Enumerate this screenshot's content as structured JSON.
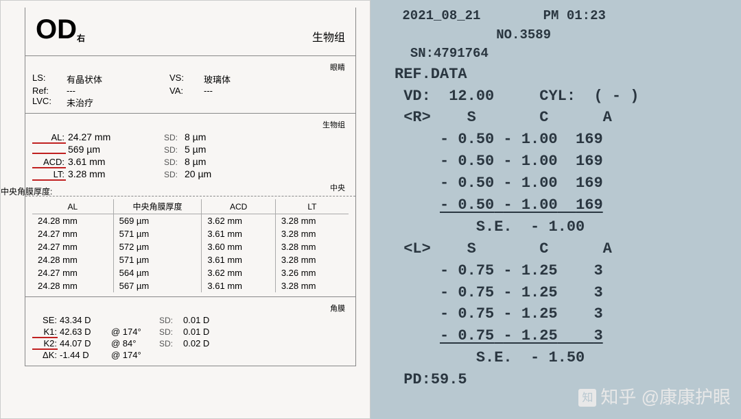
{
  "left": {
    "eye": "OD",
    "eye_sub": "右",
    "hdr_right": "生物组",
    "sub1": "眼睛",
    "status": {
      "ls_label": "LS:",
      "ls_val": "有晶状体",
      "vs_label": "VS:",
      "vs_val": "玻璃体",
      "ref_label": "Ref:",
      "ref_val": "---",
      "va_label": "VA:",
      "va_val": "---",
      "lvc_label": "LVC:",
      "lvc_val": "未治疗"
    },
    "sub2": "生物组",
    "side_note": "中央角膜厚度:",
    "biometry": [
      {
        "k": "AL:",
        "v": "24.27 mm",
        "sd_k": "SD:",
        "sd_v": "8 µm",
        "red": true
      },
      {
        "k": "",
        "v": "569 µm",
        "sd_k": "SD:",
        "sd_v": "5 µm",
        "red": true
      },
      {
        "k": "ACD:",
        "v": "3.61 mm",
        "sd_k": "SD:",
        "sd_v": "8 µm",
        "red": true
      },
      {
        "k": "LT:",
        "v": "3.28 mm",
        "sd_k": "SD:",
        "sd_v": "20 µm",
        "red": true
      }
    ],
    "sub3": "中央",
    "mtable": {
      "cols": [
        "AL",
        "中央角膜厚度",
        "ACD",
        "LT"
      ],
      "rows": [
        [
          "24.28 mm",
          "569 µm",
          "3.62 mm",
          "3.28 mm"
        ],
        [
          "24.27 mm",
          "571 µm",
          "3.61 mm",
          "3.28 mm"
        ],
        [
          "24.27 mm",
          "572 µm",
          "3.60 mm",
          "3.28 mm"
        ],
        [
          "24.28 mm",
          "571 µm",
          "3.61 mm",
          "3.28 mm"
        ],
        [
          "24.27 mm",
          "564 µm",
          "3.62 mm",
          "3.26 mm"
        ],
        [
          "24.28 mm",
          "567 µm",
          "3.61 mm",
          "3.28 mm"
        ]
      ]
    },
    "sub4": "角膜",
    "k": [
      {
        "k": "SE:",
        "v": "43.34 D",
        "at": "",
        "sdk": "SD:",
        "sdv": "0.01 D",
        "red": false
      },
      {
        "k": "K1:",
        "v": "42.63 D",
        "at": "@ 174°",
        "sdk": "SD:",
        "sdv": "0.01 D",
        "red": true
      },
      {
        "k": "K2:",
        "v": "44.07 D",
        "at": "@  84°",
        "sdk": "SD:",
        "sdv": "0.02 D",
        "red": true
      },
      {
        "k": "ΔK:",
        "v": "-1.44 D",
        "at": "@ 174°",
        "sdk": "",
        "sdv": "",
        "red": false
      }
    ]
  },
  "right": {
    "date": "2021_08_21",
    "time_label": "PM",
    "time": "01:23",
    "no_label": "NO.",
    "no": "3589",
    "sn_label": "SN:",
    "sn": "4791764",
    "title": "REF.DATA",
    "vd_label": "VD:",
    "vd": "12.00",
    "cyl_label": "CYL:",
    "cyl": "( - )",
    "r": {
      "tag": "<R>",
      "head_s": "S",
      "head_c": "C",
      "head_a": "A",
      "rows": [
        {
          "s": "- 0.50",
          "c": "- 1.00",
          "a": "169"
        },
        {
          "s": "- 0.50",
          "c": "- 1.00",
          "a": "169"
        },
        {
          "s": "- 0.50",
          "c": "- 1.00",
          "a": "169"
        }
      ],
      "avg": {
        "s": "- 0.50",
        "c": "- 1.00",
        "a": "169"
      },
      "se_label": "S.E.",
      "se": "- 1.00"
    },
    "l": {
      "tag": "<L>",
      "head_s": "S",
      "head_c": "C",
      "head_a": "A",
      "rows": [
        {
          "s": "- 0.75",
          "c": "- 1.25",
          "a": "3"
        },
        {
          "s": "- 0.75",
          "c": "- 1.25",
          "a": "3"
        },
        {
          "s": "- 0.75",
          "c": "- 1.25",
          "a": "3"
        }
      ],
      "avg": {
        "s": "- 0.75",
        "c": "- 1.25",
        "a": "3"
      },
      "se_label": "S.E.",
      "se": "- 1.50"
    },
    "pd_label": "PD:",
    "pd": "59.5"
  },
  "watermark": "知乎 @康康护眼"
}
